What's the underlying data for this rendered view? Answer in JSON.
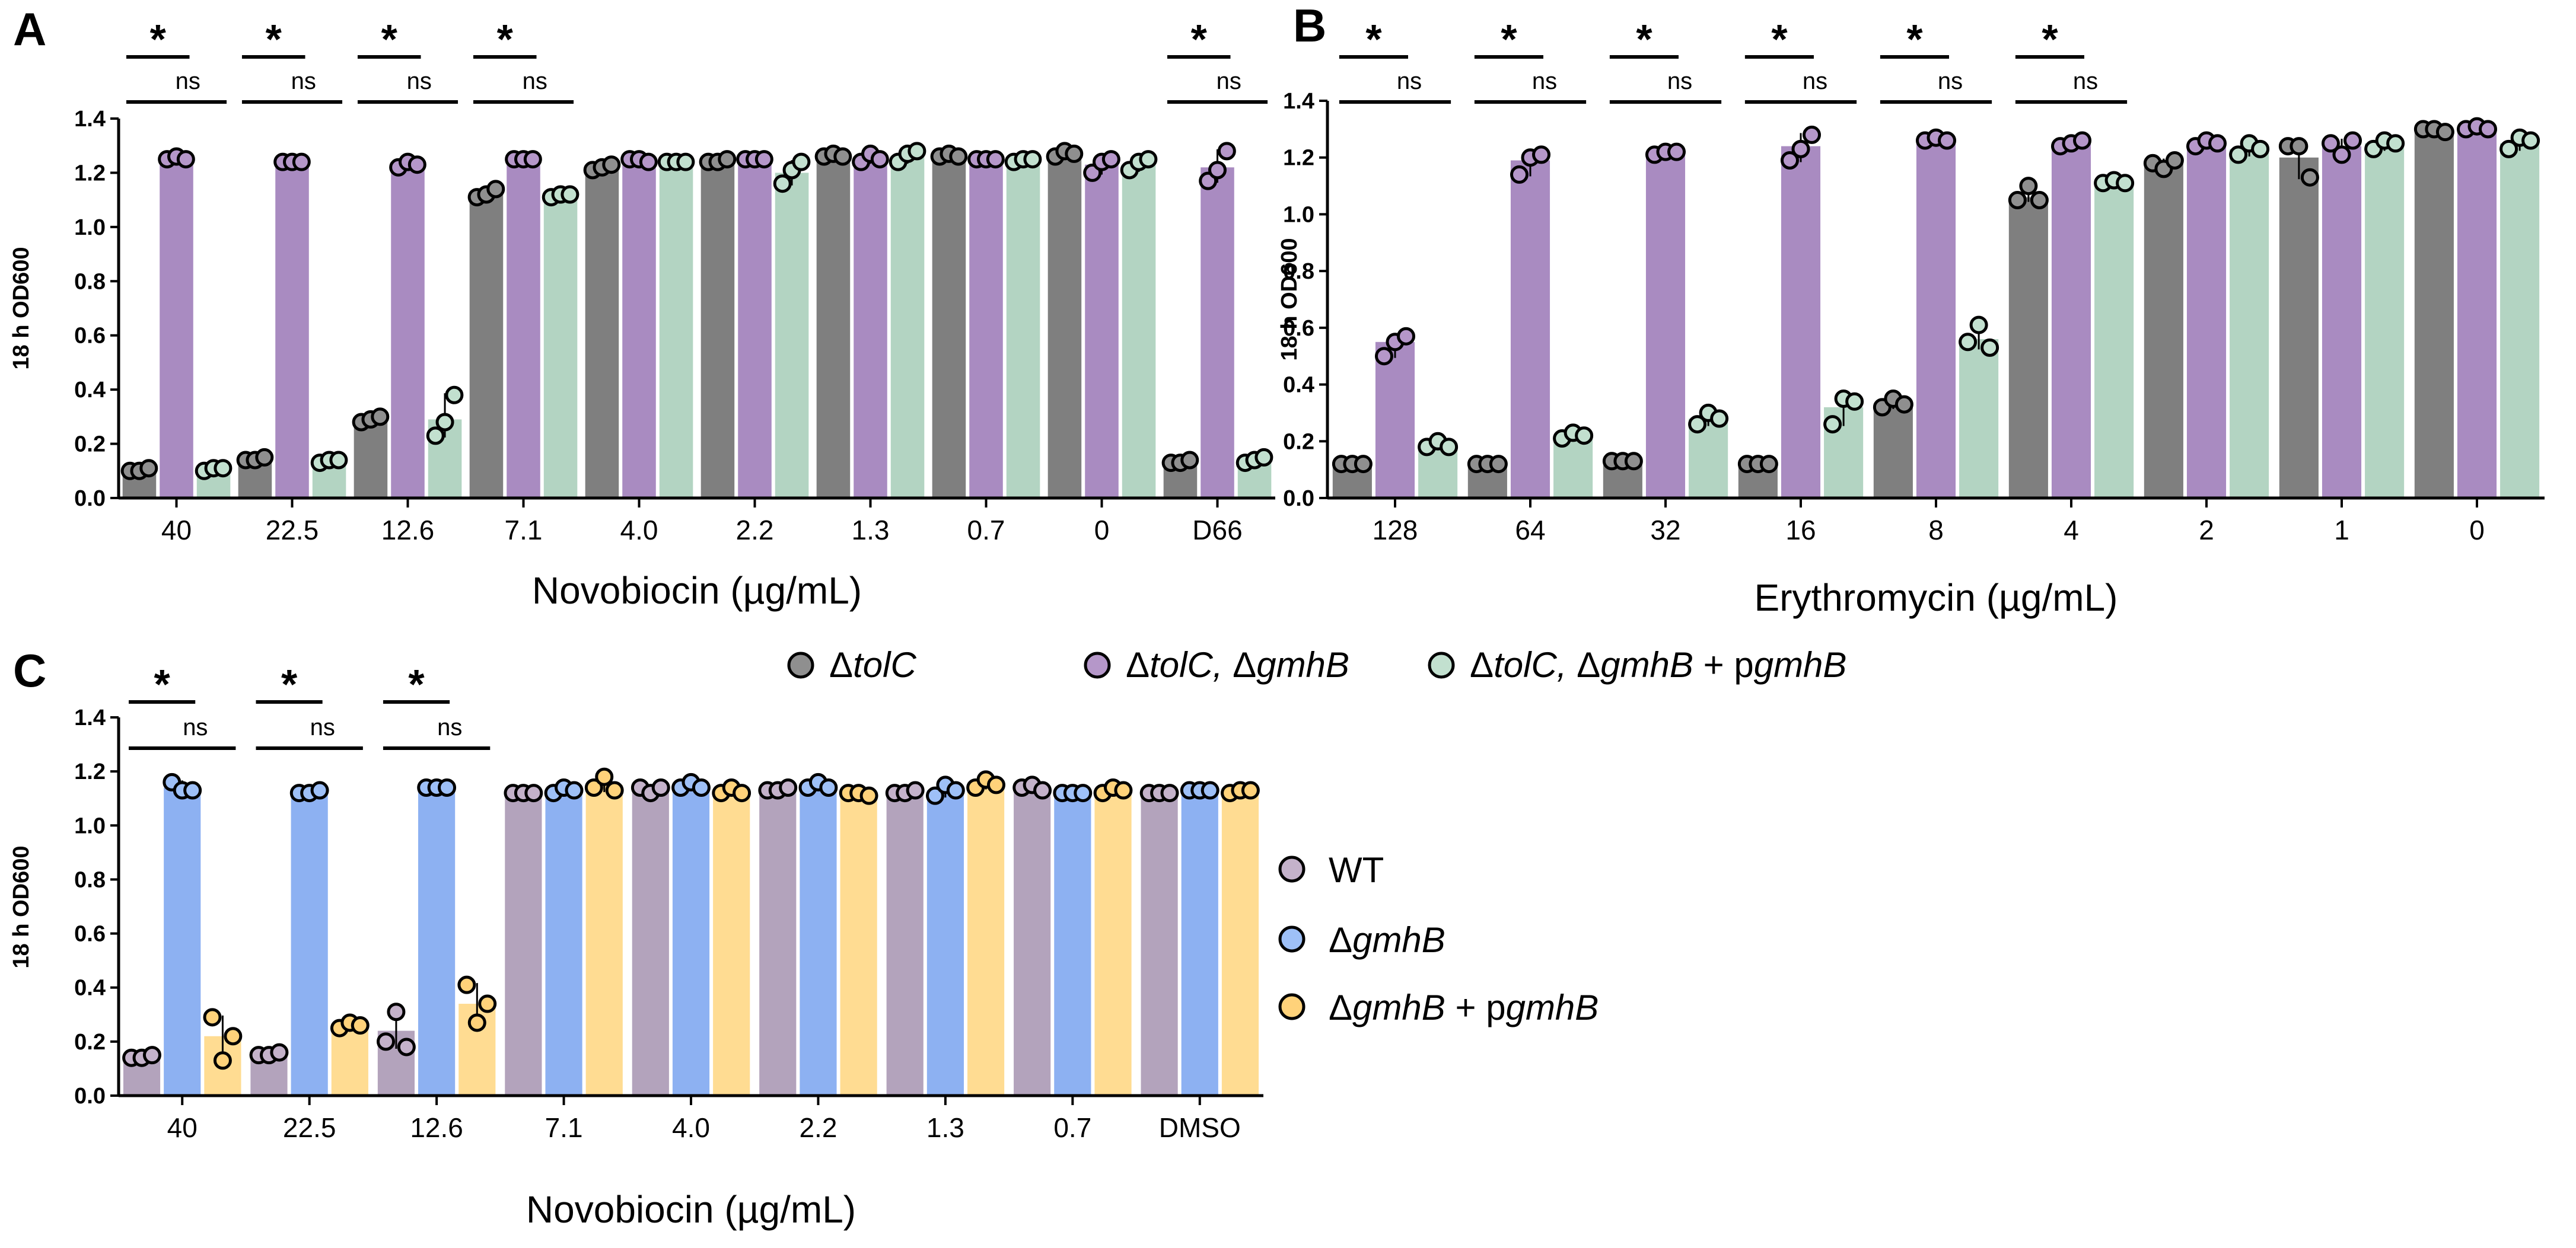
{
  "colors": {
    "tolC": "#7f7f7f",
    "tolC_gmhB": "#a98bc1",
    "tolC_gmhB_p": "#b3d4c2",
    "wt": "#b3a3bc",
    "gmhB": "#8db1f2",
    "gmhB_p": "#ffdc92",
    "tolC_dot": "#8f8f8f",
    "tolC_gmhB_dot": "#b597c9",
    "tolC_gmhB_p_dot": "#c2e0cf",
    "wt_dot": "#c4b2ca",
    "gmhB_dot": "#9ec0f7",
    "gmhB_p_dot": "#ffd27a"
  },
  "legend_top": [
    {
      "pre": "Δ",
      "it": "tolC",
      "post": ""
    },
    {
      "pre": "Δ",
      "it": "tolC, ",
      "mid": "Δ",
      "it2": "gmhB",
      "post": ""
    },
    {
      "pre": "Δ",
      "it": "tolC, ",
      "mid": "Δ",
      "it2": "gmhB",
      "tail": " + p",
      "it3": "gmhB"
    }
  ],
  "legend_c": [
    {
      "text": "WT"
    },
    {
      "pre": "Δ",
      "it": "gmhB"
    },
    {
      "pre": "Δ",
      "it": "gmhB",
      "tail": " + p",
      "it3": "gmhB"
    }
  ],
  "chart_data": [
    {
      "panel": "A",
      "type": "bar",
      "ylabel": "18 h OD600",
      "xlabel": "Novobiocin (µg/mL)",
      "ylim": [
        0,
        1.4
      ],
      "yticks": [
        "0.0",
        "0.2",
        "0.4",
        "0.6",
        "0.8",
        "1.0",
        "1.2",
        "1.4"
      ],
      "categories": [
        "40",
        "22.5",
        "12.6",
        "7.1",
        "4.0",
        "2.2",
        "1.3",
        "0.7",
        "0",
        "D66"
      ],
      "series": [
        {
          "name": "ΔtolC",
          "values": [
            0.1,
            0.14,
            0.29,
            1.12,
            1.22,
            1.24,
            1.26,
            1.26,
            1.27,
            0.13
          ],
          "points": [
            [
              0.1,
              0.1,
              0.11
            ],
            [
              0.14,
              0.14,
              0.15
            ],
            [
              0.28,
              0.29,
              0.3
            ],
            [
              1.11,
              1.12,
              1.14
            ],
            [
              1.21,
              1.22,
              1.23
            ],
            [
              1.24,
              1.24,
              1.25
            ],
            [
              1.26,
              1.27,
              1.26
            ],
            [
              1.26,
              1.27,
              1.26
            ],
            [
              1.26,
              1.28,
              1.27
            ],
            [
              0.13,
              0.13,
              0.14
            ]
          ]
        },
        {
          "name": "ΔtolC, ΔgmhB",
          "values": [
            1.25,
            1.24,
            1.23,
            1.25,
            1.25,
            1.25,
            1.25,
            1.25,
            1.23,
            1.22
          ],
          "points": [
            [
              1.25,
              1.26,
              1.25
            ],
            [
              1.24,
              1.24,
              1.24
            ],
            [
              1.22,
              1.24,
              1.23
            ],
            [
              1.25,
              1.25,
              1.25
            ],
            [
              1.25,
              1.25,
              1.24
            ],
            [
              1.25,
              1.25,
              1.25
            ],
            [
              1.24,
              1.27,
              1.25
            ],
            [
              1.25,
              1.25,
              1.25
            ],
            [
              1.2,
              1.24,
              1.25
            ],
            [
              1.17,
              1.21,
              1.28
            ]
          ]
        },
        {
          "name": "ΔtolC, ΔgmhB + pgmhB",
          "values": [
            0.11,
            0.14,
            0.29,
            1.12,
            1.24,
            1.2,
            1.26,
            1.24,
            1.23,
            0.14
          ],
          "points": [
            [
              0.1,
              0.11,
              0.11
            ],
            [
              0.13,
              0.14,
              0.14
            ],
            [
              0.23,
              0.28,
              0.38
            ],
            [
              1.11,
              1.12,
              1.12
            ],
            [
              1.24,
              1.24,
              1.24
            ],
            [
              1.16,
              1.21,
              1.24
            ],
            [
              1.24,
              1.27,
              1.28
            ],
            [
              1.24,
              1.25,
              1.25
            ],
            [
              1.21,
              1.24,
              1.25
            ],
            [
              0.13,
              0.14,
              0.15
            ]
          ]
        }
      ],
      "annotations": {
        "star": "*",
        "ns": "ns",
        "groups": [
          0,
          1,
          2,
          3,
          9
        ]
      }
    },
    {
      "panel": "B",
      "type": "bar",
      "ylabel": "18 h OD600",
      "xlabel": "Erythromycin (µg/mL)",
      "ylim": [
        0,
        1.4
      ],
      "yticks": [
        "0.0",
        "0.2",
        "0.4",
        "0.6",
        "0.8",
        "1.0",
        "1.2",
        "1.4"
      ],
      "categories": [
        "128",
        "64",
        "32",
        "16",
        "8",
        "4",
        "2",
        "1",
        "0"
      ],
      "series": [
        {
          "name": "ΔtolC",
          "values": [
            0.12,
            0.12,
            0.13,
            0.12,
            0.33,
            1.06,
            1.19,
            1.2,
            1.29
          ],
          "points": [
            [
              0.12,
              0.12,
              0.12
            ],
            [
              0.12,
              0.12,
              0.12
            ],
            [
              0.13,
              0.13,
              0.13
            ],
            [
              0.12,
              0.12,
              0.12
            ],
            [
              0.32,
              0.35,
              0.33
            ],
            [
              1.05,
              1.1,
              1.05
            ],
            [
              1.18,
              1.16,
              1.19
            ],
            [
              1.24,
              1.24,
              1.13
            ],
            [
              1.3,
              1.3,
              1.29
            ]
          ]
        },
        {
          "name": "ΔtolC, ΔgmhB",
          "values": [
            0.55,
            1.19,
            1.22,
            1.24,
            1.26,
            1.25,
            1.25,
            1.24,
            1.3
          ],
          "points": [
            [
              0.5,
              0.55,
              0.57
            ],
            [
              1.14,
              1.2,
              1.21
            ],
            [
              1.21,
              1.22,
              1.22
            ],
            [
              1.19,
              1.23,
              1.28
            ],
            [
              1.26,
              1.27,
              1.26
            ],
            [
              1.24,
              1.25,
              1.26
            ],
            [
              1.24,
              1.26,
              1.25
            ],
            [
              1.25,
              1.21,
              1.26
            ],
            [
              1.3,
              1.31,
              1.3
            ]
          ]
        },
        {
          "name": "ΔtolC, ΔgmhB + pgmhB",
          "values": [
            0.19,
            0.21,
            0.28,
            0.32,
            0.56,
            1.11,
            1.23,
            1.25,
            1.25
          ],
          "points": [
            [
              0.18,
              0.2,
              0.18
            ],
            [
              0.21,
              0.23,
              0.22
            ],
            [
              0.26,
              0.3,
              0.28
            ],
            [
              0.26,
              0.35,
              0.34
            ],
            [
              0.55,
              0.61,
              0.53
            ],
            [
              1.11,
              1.12,
              1.11
            ],
            [
              1.21,
              1.25,
              1.23
            ],
            [
              1.23,
              1.26,
              1.25
            ],
            [
              1.23,
              1.27,
              1.26
            ]
          ]
        }
      ],
      "annotations": {
        "star": "*",
        "ns": "ns",
        "groups": [
          0,
          1,
          2,
          3,
          4,
          5
        ]
      }
    },
    {
      "panel": "C",
      "type": "bar",
      "ylabel": "18 h OD600",
      "xlabel": "Novobiocin (µg/mL)",
      "ylim": [
        0,
        1.4
      ],
      "yticks": [
        "0.0",
        "0.2",
        "0.4",
        "0.6",
        "0.8",
        "1.0",
        "1.2",
        "1.4"
      ],
      "categories": [
        "40",
        "22.5",
        "12.6",
        "7.1",
        "4.0",
        "2.2",
        "1.3",
        "0.7",
        "DMSO"
      ],
      "series": [
        {
          "name": "WT",
          "values": [
            0.14,
            0.15,
            0.24,
            1.12,
            1.13,
            1.13,
            1.12,
            1.14,
            1.12
          ],
          "points": [
            [
              0.14,
              0.14,
              0.15
            ],
            [
              0.15,
              0.15,
              0.16
            ],
            [
              0.2,
              0.31,
              0.18
            ],
            [
              1.12,
              1.12,
              1.12
            ],
            [
              1.14,
              1.12,
              1.14
            ],
            [
              1.13,
              1.13,
              1.14
            ],
            [
              1.12,
              1.12,
              1.13
            ],
            [
              1.14,
              1.15,
              1.13
            ],
            [
              1.12,
              1.12,
              1.12
            ]
          ]
        },
        {
          "name": "ΔgmhB",
          "values": [
            1.14,
            1.12,
            1.14,
            1.13,
            1.14,
            1.15,
            1.13,
            1.12,
            1.13
          ],
          "points": [
            [
              1.16,
              1.13,
              1.13
            ],
            [
              1.12,
              1.12,
              1.13
            ],
            [
              1.14,
              1.14,
              1.14
            ],
            [
              1.12,
              1.14,
              1.13
            ],
            [
              1.14,
              1.16,
              1.14
            ],
            [
              1.14,
              1.16,
              1.14
            ],
            [
              1.11,
              1.15,
              1.13
            ],
            [
              1.12,
              1.12,
              1.12
            ],
            [
              1.13,
              1.13,
              1.13
            ]
          ]
        },
        {
          "name": "ΔgmhB + pgmhB",
          "values": [
            0.22,
            0.26,
            0.34,
            1.15,
            1.13,
            1.12,
            1.15,
            1.13,
            1.13
          ],
          "points": [
            [
              0.29,
              0.13,
              0.22
            ],
            [
              0.25,
              0.27,
              0.26
            ],
            [
              0.41,
              0.27,
              0.34
            ],
            [
              1.14,
              1.18,
              1.13
            ],
            [
              1.12,
              1.14,
              1.12
            ],
            [
              1.12,
              1.12,
              1.11
            ],
            [
              1.14,
              1.17,
              1.15
            ],
            [
              1.12,
              1.14,
              1.13
            ],
            [
              1.12,
              1.13,
              1.13
            ]
          ]
        }
      ],
      "annotations": {
        "star": "*",
        "ns": "ns",
        "groups": [
          0,
          1,
          2
        ]
      }
    }
  ]
}
